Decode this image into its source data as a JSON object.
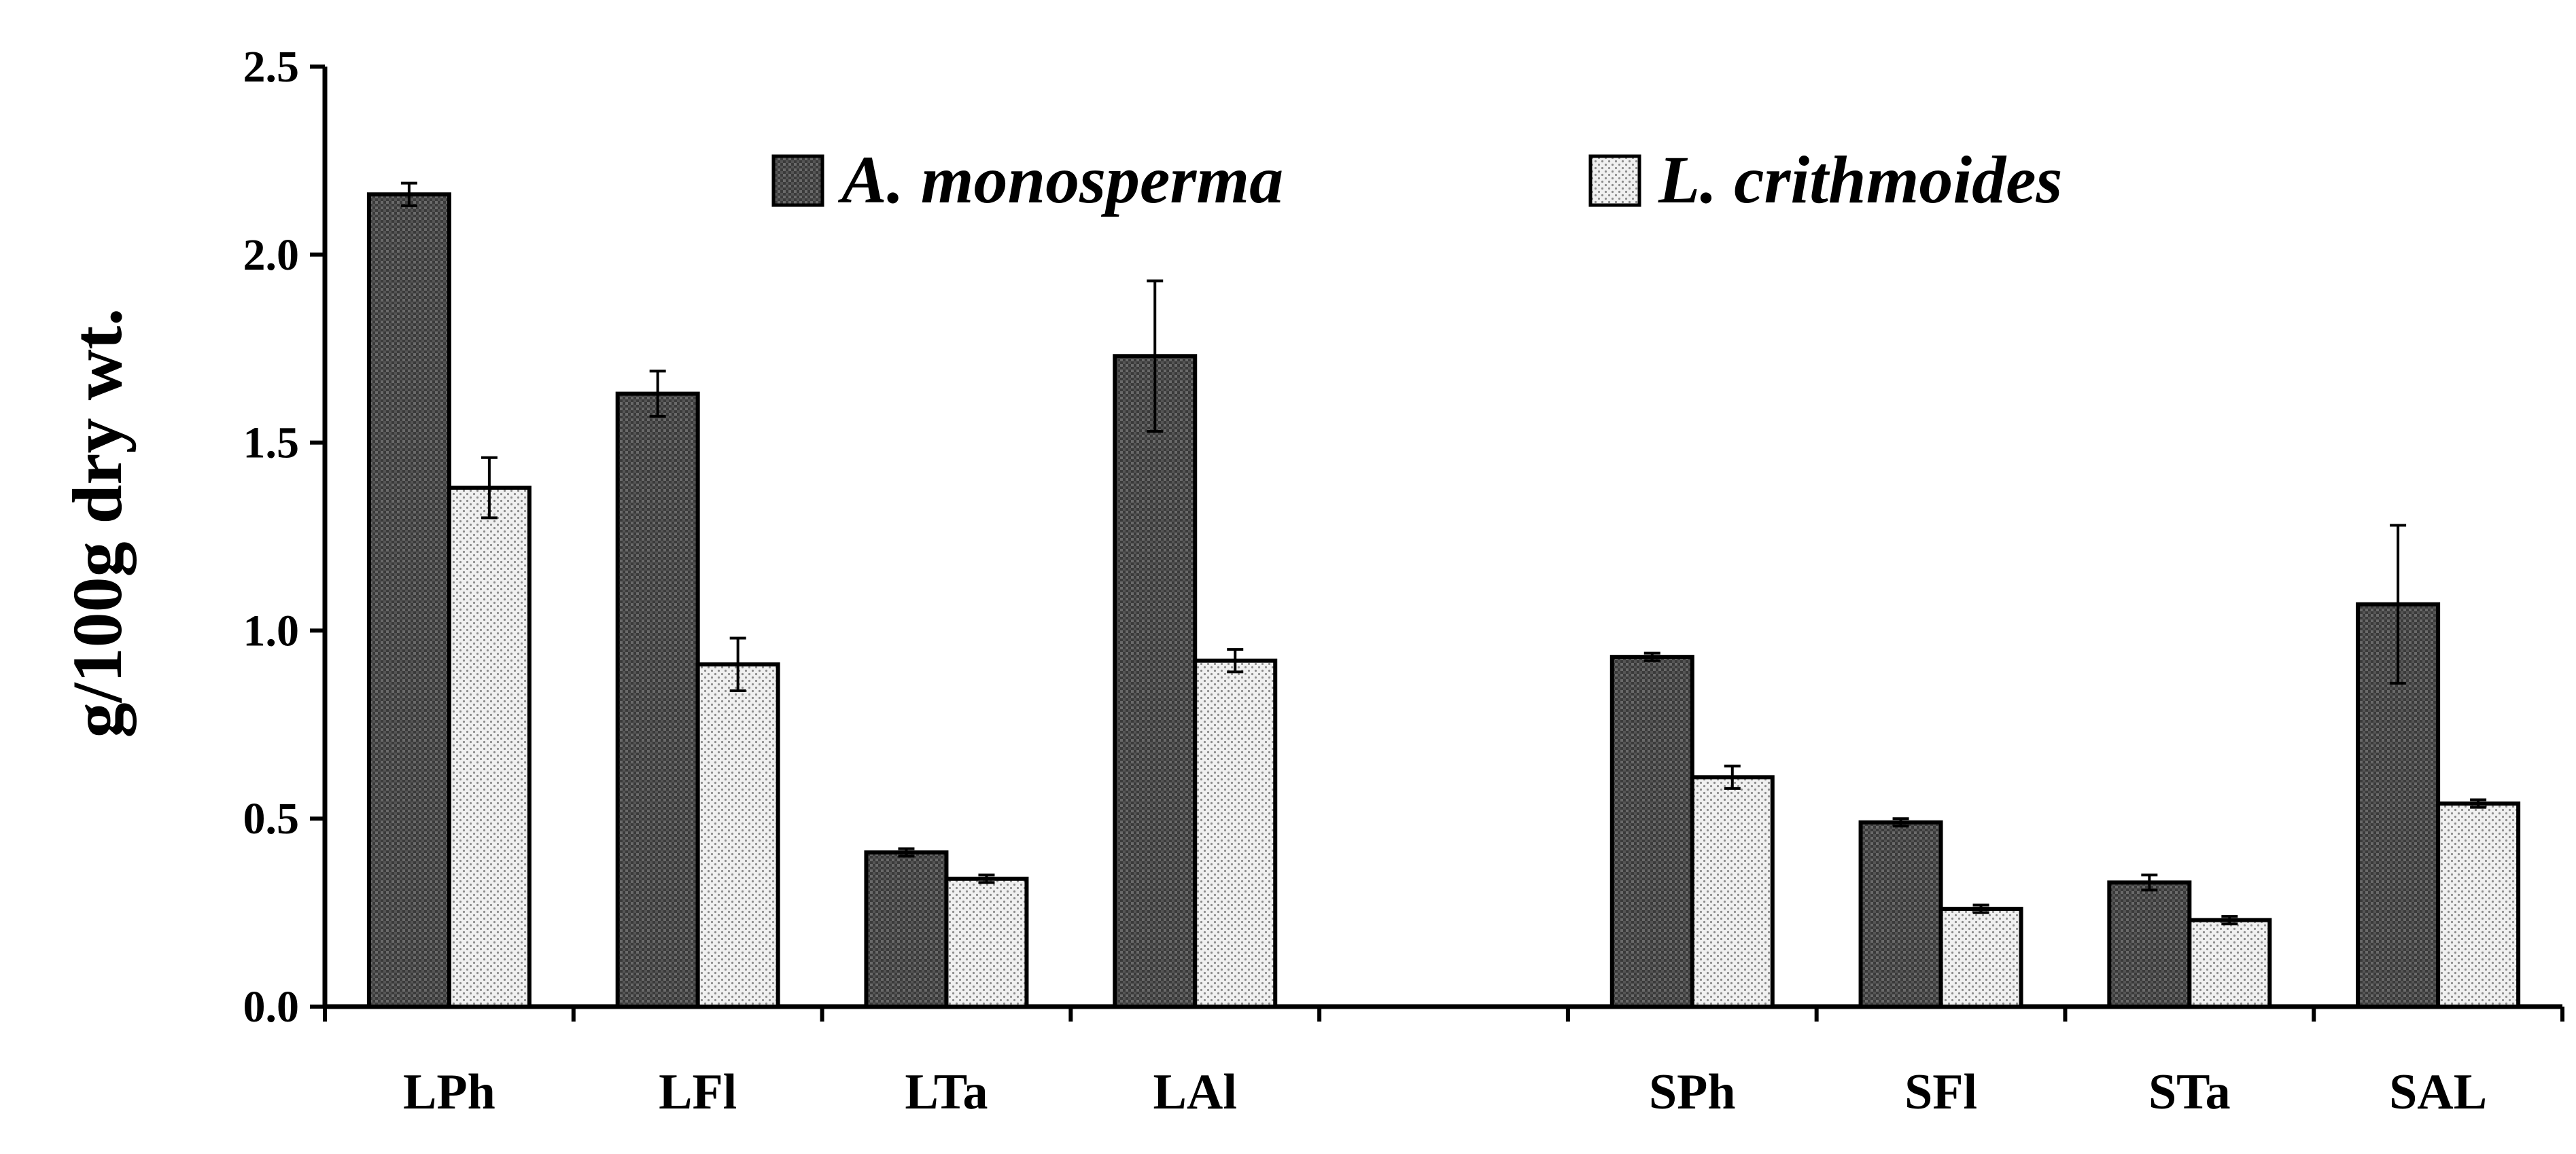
{
  "chart_data": {
    "type": "bar",
    "title": "",
    "xlabel": "",
    "ylabel": "g/100g dry wt.",
    "ylim": [
      0,
      2.5
    ],
    "yticks": [
      "0.0",
      "0.5",
      "1.0",
      "1.5",
      "2.0",
      "2.5"
    ],
    "categories": [
      "LPh",
      "LFl",
      "LTa",
      "LAl",
      "",
      "SPh",
      "SFl",
      "STa",
      "SAL"
    ],
    "series": [
      {
        "name": "A. monosperma",
        "fill": "dark-hatched",
        "color": "#444444",
        "values": [
          2.16,
          1.63,
          0.41,
          1.73,
          null,
          0.93,
          0.49,
          0.33,
          1.07
        ],
        "errors": [
          0.03,
          0.06,
          0.01,
          0.2,
          null,
          0.01,
          0.01,
          0.02,
          0.21
        ]
      },
      {
        "name": "L. crithmoides",
        "fill": "light-dotted",
        "color": "#dcdcdc",
        "values": [
          1.38,
          0.91,
          0.34,
          0.92,
          null,
          0.61,
          0.26,
          0.23,
          0.54
        ],
        "errors": [
          0.08,
          0.07,
          0.01,
          0.03,
          null,
          0.03,
          0.01,
          0.01,
          0.01
        ]
      }
    ],
    "legend": {
      "position": "top-center"
    },
    "grid": false
  }
}
